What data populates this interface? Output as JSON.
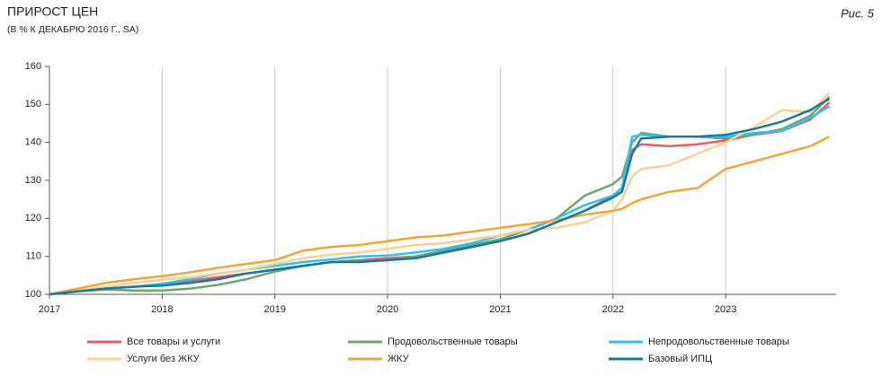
{
  "chart_data": {
    "type": "line",
    "title": "ПРИРОСТ ЦЕН",
    "subtitle": "(В % К ДЕКАБРЮ 2016 Г., SA)",
    "figure_label": "Рис. 5",
    "x": [
      2017,
      2017.25,
      2017.5,
      2017.75,
      2018,
      2018.25,
      2018.5,
      2018.75,
      2019,
      2019.25,
      2019.5,
      2019.75,
      2020,
      2020.25,
      2020.5,
      2020.75,
      2021,
      2021.25,
      2021.5,
      2021.75,
      2022,
      2022.08,
      2022.17,
      2022.25,
      2022.5,
      2022.75,
      2023,
      2023.25,
      2023.5,
      2023.75,
      2023.92
    ],
    "xlim": [
      2017,
      2023.98
    ],
    "xticks": [
      2017,
      2018,
      2019,
      2020,
      2021,
      2022,
      2023
    ],
    "ylim": [
      100,
      160
    ],
    "yticks": [
      100,
      110,
      120,
      130,
      140,
      150,
      160
    ],
    "grid": "x",
    "series": [
      {
        "name": "Все товары и услуги",
        "color": "#ef5a5f",
        "values": [
          100,
          100.8,
          101.5,
          102,
          102.5,
          103.5,
          104.5,
          105.5,
          106.5,
          107.5,
          108.5,
          109,
          109.5,
          110,
          111,
          112.5,
          114,
          116,
          119,
          122,
          126,
          128,
          138,
          139.5,
          139,
          139.5,
          140.5,
          142,
          143,
          146,
          150.5
        ]
      },
      {
        "name": "Продовольственные товары",
        "color": "#6aa96a",
        "values": [
          100,
          100.8,
          101.3,
          101,
          101,
          101.5,
          102.5,
          104,
          106,
          107.5,
          108.5,
          108.7,
          109,
          110,
          111.5,
          113,
          114.5,
          117,
          120,
          126,
          129,
          131,
          140,
          142.5,
          141.5,
          141.5,
          141,
          142,
          143.5,
          147,
          152
        ]
      },
      {
        "name": "Непродовольственные товары",
        "color": "#29c4ef",
        "values": [
          100,
          101,
          101.5,
          102,
          102.8,
          104,
          105.5,
          106.5,
          107.5,
          108.5,
          109.2,
          110,
          110.2,
          111,
          112,
          113.5,
          115.5,
          117,
          120,
          123.5,
          126,
          128,
          141.5,
          142,
          141.5,
          141.5,
          141.5,
          142.5,
          143,
          146.5,
          149.5
        ]
      },
      {
        "name": "Услуги без ЖКУ",
        "color": "#fcd08f",
        "values": [
          100,
          101,
          102,
          103,
          103.8,
          104.5,
          105.5,
          106.5,
          108,
          109.5,
          110.5,
          111,
          112,
          113,
          113.5,
          114.5,
          115.5,
          117,
          117.5,
          119,
          122,
          125,
          131,
          133,
          134,
          137,
          140,
          144,
          148.5,
          148,
          153
        ]
      },
      {
        "name": "ЖКУ",
        "color": "#f5a534",
        "values": [
          100,
          101.5,
          103,
          104,
          104.8,
          105.8,
          107,
          108,
          109,
          111.5,
          112.5,
          113,
          114,
          115,
          115.5,
          116.5,
          117.5,
          118.5,
          119.5,
          121,
          122,
          122.5,
          124,
          125,
          127,
          128,
          133,
          135,
          137,
          139,
          141.5
        ]
      },
      {
        "name": "Базовый ИПЦ",
        "color": "#1479a8",
        "values": [
          100,
          100.8,
          101.5,
          102,
          102.3,
          103,
          104,
          105.5,
          106.5,
          107.5,
          108.5,
          108.5,
          109,
          109.5,
          111,
          112.5,
          114,
          116,
          119,
          122,
          125.5,
          127,
          137,
          141,
          141.5,
          141.5,
          142,
          143.5,
          145.5,
          148.5,
          151.5
        ]
      }
    ]
  }
}
